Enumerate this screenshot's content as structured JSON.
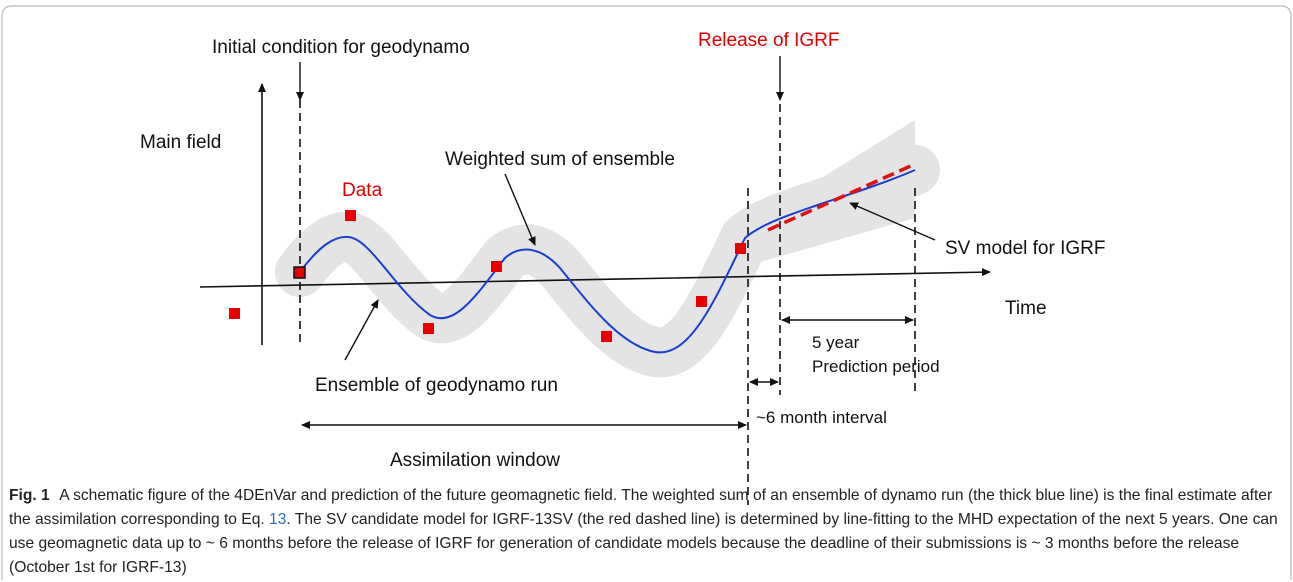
{
  "figure": {
    "labels": {
      "initial_condition": "Initial condition for geodynamo",
      "release": "Release of IGRF",
      "main_field": "Main field",
      "data": "Data",
      "weighted_sum": "Weighted sum of ensemble",
      "sv_model": "SV model for IGRF",
      "time": "Time",
      "five_year": "5 year",
      "prediction_period": "Prediction period",
      "ensemble": "Ensemble of geodynamo run",
      "interval": "~6 month interval",
      "assimilation_window": "Assimilation window"
    }
  },
  "caption": {
    "label": "Fig. 1",
    "text_before_ref": "A schematic figure of the 4DEnVar and prediction of the future geomagnetic field. The weighted sum of an ensemble of dynamo run (the thick blue line) is the final estimate after the assimilation corresponding to Eq. ",
    "ref": "13",
    "text_after_ref": ". The SV candidate model for IGRF-13SV (the red dashed line) is determined by line-fitting to the MHD expectation of the next 5 years. One can use geomagnetic data up to ~ 6 months before the release of IGRF for generation of candidate models because the deadline of their submissions is ~ 3 months before the release (October 1st for IGRF-13)"
  }
}
